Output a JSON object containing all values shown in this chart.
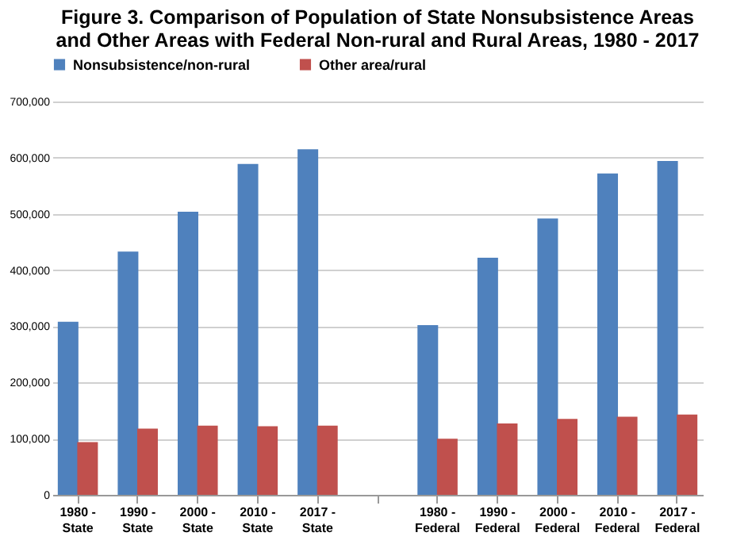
{
  "chart_data": {
    "type": "bar",
    "title": "Figure 3.  Comparison of Population of State Nonsubsistence Areas and Other Areas with  Federal Non-rural and Rural Areas, 1980 - 2017",
    "categories": [
      "1980 - State",
      "1990 - State",
      "2000 - State",
      "2010 - State",
      "2017 - State",
      null,
      "1980 - Federal",
      "1990 - Federal",
      "2000 - Federal",
      "2010 - Federal",
      "2017 - Federal"
    ],
    "series": [
      {
        "name": "Nonsubsistence/non-rural",
        "color": "#4f81bd",
        "values": [
          308000,
          433000,
          504000,
          589000,
          615000,
          null,
          302000,
          422000,
          492000,
          572000,
          594000
        ]
      },
      {
        "name": "Other area/rural",
        "color": "#c0504d",
        "values": [
          94000,
          118000,
          123000,
          122000,
          123000,
          null,
          100000,
          127000,
          135000,
          139000,
          143000
        ]
      }
    ],
    "ylim": [
      0,
      700000
    ],
    "yticks": [
      0,
      {
        "value": 100000,
        "label": "100,000"
      },
      {
        "value": 200000,
        "label": "200,000"
      },
      {
        "value": 300000,
        "label": "300,000"
      },
      {
        "value": 400000,
        "label": "400,000"
      },
      {
        "value": 500000,
        "label": "500,000"
      },
      {
        "value": 600000,
        "label": "600,000"
      },
      {
        "value": 700000,
        "label": "700,000"
      }
    ],
    "grid": "y",
    "legend": "top"
  }
}
